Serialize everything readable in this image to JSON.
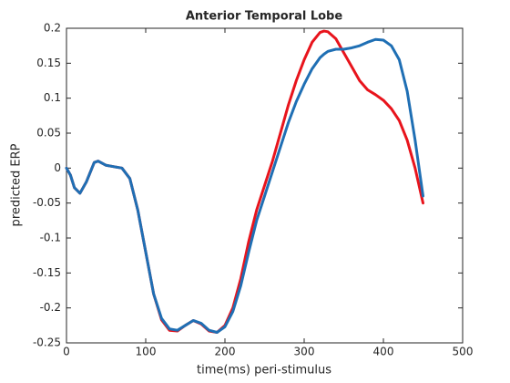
{
  "chart_data": {
    "type": "line",
    "title": "Anterior Temporal Lobe",
    "xlabel": "time(ms) peri-stimulus",
    "ylabel": "predicted ERP",
    "x": [
      0,
      5,
      10,
      17,
      25,
      35,
      40,
      50,
      60,
      70,
      80,
      90,
      100,
      110,
      120,
      130,
      140,
      150,
      160,
      170,
      180,
      190,
      200,
      210,
      220,
      230,
      240,
      250,
      260,
      270,
      280,
      290,
      300,
      310,
      320,
      325,
      330,
      340,
      350,
      360,
      370,
      380,
      390,
      400,
      410,
      420,
      430,
      440,
      450
    ],
    "series": [
      {
        "name": "red",
        "color": "#e8141c",
        "values": [
          0,
          -0.01,
          -0.028,
          -0.036,
          -0.02,
          0.008,
          0.01,
          0.004,
          0.002,
          0,
          -0.015,
          -0.06,
          -0.12,
          -0.18,
          -0.217,
          -0.232,
          -0.233,
          -0.225,
          -0.218,
          -0.223,
          -0.233,
          -0.235,
          -0.225,
          -0.2,
          -0.158,
          -0.105,
          -0.06,
          -0.025,
          0.01,
          0.05,
          0.09,
          0.125,
          0.155,
          0.18,
          0.194,
          0.196,
          0.195,
          0.185,
          0.165,
          0.145,
          0.125,
          0.112,
          0.105,
          0.097,
          0.085,
          0.068,
          0.04,
          0.0,
          -0.05
        ]
      },
      {
        "name": "blue",
        "color": "#1f6fb4",
        "values": [
          0,
          -0.01,
          -0.028,
          -0.036,
          -0.02,
          0.008,
          0.01,
          0.004,
          0.002,
          0,
          -0.015,
          -0.06,
          -0.12,
          -0.18,
          -0.215,
          -0.23,
          -0.232,
          -0.225,
          -0.218,
          -0.222,
          -0.232,
          -0.235,
          -0.227,
          -0.205,
          -0.168,
          -0.12,
          -0.075,
          -0.04,
          -0.005,
          0.03,
          0.065,
          0.095,
          0.12,
          0.142,
          0.158,
          0.163,
          0.167,
          0.17,
          0.17,
          0.172,
          0.175,
          0.18,
          0.184,
          0.183,
          0.175,
          0.155,
          0.11,
          0.04,
          -0.04
        ]
      }
    ],
    "xlim": [
      0,
      500
    ],
    "xticks": [
      0,
      100,
      200,
      300,
      400,
      500
    ],
    "ylim": [
      -0.25,
      0.2
    ],
    "yticks": [
      -0.25,
      -0.2,
      -0.15,
      -0.1,
      -0.05,
      0,
      0.05,
      0.1,
      0.15,
      0.2
    ]
  }
}
